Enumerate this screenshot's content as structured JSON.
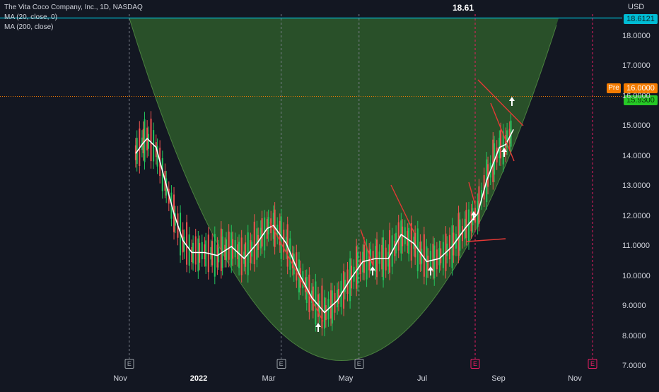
{
  "legend": {
    "title": "The Vita Coco Company, Inc., 1D, NASDAQ",
    "ma1": "MA (20, close, 0)",
    "ma2": "MA (200, close)"
  },
  "header_value": "18.61",
  "currency": "USD",
  "pre_label": "Pre",
  "price_tags": {
    "hline": "18.6121",
    "pre": "16.0000",
    "last": "15.9300"
  },
  "colors": {
    "background": "#131722",
    "up": "#26a69a",
    "up_bright": "#22c55e",
    "down": "#ef5350",
    "cup_fill": "#2e5a2a",
    "ma": "#ffffff",
    "hline": "#00bcd4",
    "trendline": "#e53935",
    "event_earnings": "#26a69a",
    "event_future": "#e91e63"
  },
  "icons": [
    "up-arrow-icon",
    "earnings-marker-icon"
  ],
  "chart_data": {
    "type": "candlestick",
    "title": "The Vita Coco Company, Inc., 1D, NASDAQ",
    "xlabel": "",
    "ylabel": "USD",
    "ylim": [
      6.9,
      19.0
    ],
    "y_ticks": [
      "7.0000",
      "8.0000",
      "9.0000",
      "10.0000",
      "11.0000",
      "12.0000",
      "13.0000",
      "14.0000",
      "15.0000",
      "16.0000",
      "17.0000",
      "18.0000"
    ],
    "x_ticks": [
      "Nov",
      "2022",
      "Mar",
      "May",
      "Jul",
      "Sep",
      "Nov"
    ],
    "grid": false,
    "horizontal_line": 18.6121,
    "pre_market": 16.0,
    "last_price": 15.93,
    "series": [
      {
        "name": "MA (20, close, 0)",
        "kind": "line",
        "points": [
          [
            "2021-11-17",
            14.1
          ],
          [
            "2021-11-22",
            14.4
          ],
          [
            "2021-11-26",
            14.6
          ],
          [
            "2021-12-03",
            14.3
          ],
          [
            "2021-12-10",
            13.2
          ],
          [
            "2021-12-17",
            12.1
          ],
          [
            "2021-12-24",
            11.2
          ],
          [
            "2021-12-31",
            10.8
          ],
          [
            "2022-01-10",
            10.8
          ],
          [
            "2022-01-20",
            10.7
          ],
          [
            "2022-01-31",
            11.0
          ],
          [
            "2022-02-10",
            10.6
          ],
          [
            "2022-02-20",
            11.1
          ],
          [
            "2022-02-28",
            11.6
          ],
          [
            "2022-03-05",
            11.7
          ],
          [
            "2022-03-15",
            11.1
          ],
          [
            "2022-03-25",
            10.1
          ],
          [
            "2022-04-04",
            9.3
          ],
          [
            "2022-04-14",
            8.8
          ],
          [
            "2022-04-24",
            9.2
          ],
          [
            "2022-05-04",
            9.9
          ],
          [
            "2022-05-14",
            10.5
          ],
          [
            "2022-05-24",
            10.6
          ],
          [
            "2022-06-03",
            10.6
          ],
          [
            "2022-06-13",
            11.4
          ],
          [
            "2022-06-23",
            11.1
          ],
          [
            "2022-07-03",
            10.5
          ],
          [
            "2022-07-13",
            10.6
          ],
          [
            "2022-07-23",
            11.0
          ],
          [
            "2022-08-02",
            11.6
          ],
          [
            "2022-08-12",
            12.1
          ],
          [
            "2022-08-19",
            13.2
          ],
          [
            "2022-08-29",
            14.3
          ],
          [
            "2022-09-03",
            14.4
          ],
          [
            "2022-09-09",
            14.9
          ]
        ]
      }
    ],
    "annotations": [
      {
        "type": "cup",
        "description": "rounded cup pattern",
        "bottom": 7.2
      },
      {
        "type": "marker",
        "label": "E",
        "x": "2021-11-12"
      },
      {
        "type": "marker",
        "label": "E",
        "x": "2022-03-11"
      },
      {
        "type": "marker",
        "label": "E",
        "x": "2022-05-11"
      },
      {
        "type": "marker",
        "label": "E",
        "x": "2022-08-10"
      },
      {
        "type": "marker",
        "label": "E",
        "x": "2022-11-10"
      }
    ]
  }
}
